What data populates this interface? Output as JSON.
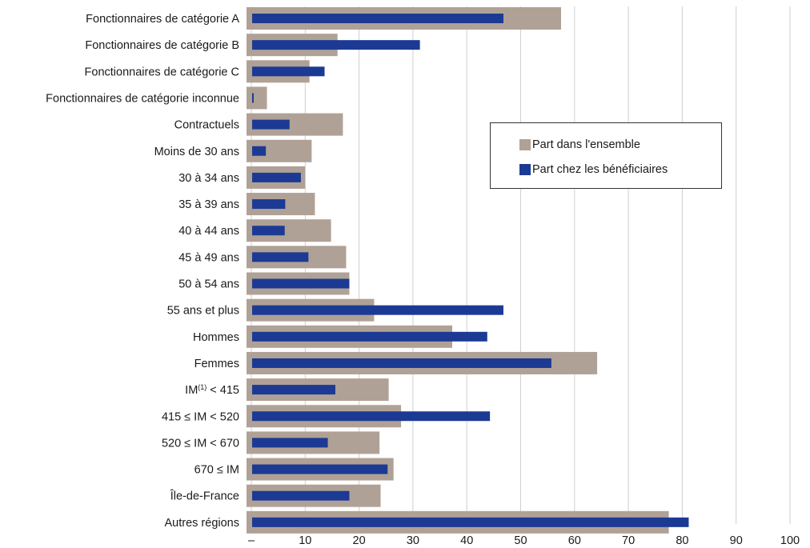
{
  "chart_data": {
    "type": "bar",
    "orientation": "horizontal",
    "categories": [
      "Fonctionnaires de catégorie A",
      "Fonctionnaires de catégorie B",
      "Fonctionnaires de catégorie C",
      "Fonctionnaires de catégorie inconnue",
      "Contractuels",
      "Moins de 30 ans",
      "30 à 34 ans",
      "35 à 39 ans",
      "40 à 44 ans",
      "45 à 49 ans",
      "50 à 54 ans",
      "55 ans et plus",
      "Hommes",
      "Femmes",
      "IM(1) < 415",
      "415 ≤ IM < 520",
      "520 ≤ IM < 670",
      "670 ≤ IM",
      "Île-de-France",
      "Autres régions"
    ],
    "series": [
      {
        "name": "Part dans l'ensemble",
        "color": "#b0a196",
        "values": [
          57.5,
          16.0,
          10.8,
          2.9,
          17.0,
          11.2,
          10.0,
          11.8,
          14.8,
          17.6,
          18.2,
          22.8,
          37.3,
          64.2,
          25.5,
          27.8,
          23.8,
          26.4,
          24.0,
          77.5
        ]
      },
      {
        "name": "Part chez les bénéficiaires",
        "color": "#1c3a94",
        "values": [
          46.8,
          31.3,
          13.6,
          0.3,
          7.1,
          2.7,
          9.2,
          6.3,
          6.2,
          10.6,
          18.2,
          46.8,
          43.8,
          55.7,
          15.6,
          44.3,
          14.2,
          25.3,
          18.2,
          81.2
        ]
      }
    ],
    "x_ticks": [
      "–",
      "10",
      "20",
      "30",
      "40",
      "50",
      "60",
      "70",
      "80",
      "90",
      "100"
    ],
    "xlim": [
      0,
      100
    ],
    "grid": true,
    "legend_position": "middle-right",
    "title": "",
    "xlabel": "",
    "ylabel": ""
  },
  "labels": {
    "im_label_prefix": "IM",
    "im_label_sup": "(1)",
    "im_label_suffix": " < 415"
  }
}
